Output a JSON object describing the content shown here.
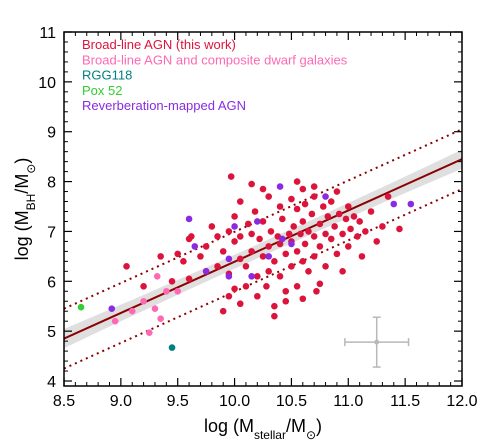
{
  "chart_data": {
    "type": "scatter",
    "xlabel": "log (M_stellar/M_⊙)",
    "ylabel": "log (M_BH/M_⊙)",
    "xlim": [
      8.5,
      12.0
    ],
    "ylim": [
      3.9,
      11.0
    ],
    "x_ticks": [
      "8.5",
      "9.0",
      "9.5",
      "10.0",
      "10.5",
      "11.0",
      "11.5",
      "12.0"
    ],
    "y_ticks": [
      "4",
      "5",
      "6",
      "7",
      "8",
      "9",
      "10",
      "11"
    ],
    "grid": false,
    "legend_position": "top-left",
    "fit": {
      "line": [
        [
          8.5,
          4.85
        ],
        [
          12.0,
          8.45
        ]
      ],
      "color": "#8b0000",
      "scatter_offset": 0.6,
      "band_halfwidth": 0.12
    },
    "error_bar_example": {
      "x": 11.25,
      "y": 4.78,
      "xerr": 0.28,
      "yerr": 0.5,
      "color": "#b8b8b8"
    },
    "series": [
      {
        "name": "Broad-line AGN (this work)",
        "color": "#dc143c",
        "points": [
          [
            9.05,
            6.3
          ],
          [
            9.2,
            5.9
          ],
          [
            9.35,
            6.5
          ],
          [
            9.45,
            6.0
          ],
          [
            9.5,
            6.55
          ],
          [
            9.55,
            6.4
          ],
          [
            9.6,
            6.05
          ],
          [
            9.62,
            6.9
          ],
          [
            9.7,
            6.5
          ],
          [
            9.75,
            6.7
          ],
          [
            9.75,
            6.2
          ],
          [
            9.8,
            7.1
          ],
          [
            9.85,
            6.9
          ],
          [
            9.85,
            6.3
          ],
          [
            9.9,
            6.6
          ],
          [
            9.95,
            7.0
          ],
          [
            9.95,
            6.15
          ],
          [
            9.95,
            5.7
          ],
          [
            9.97,
            8.1
          ],
          [
            10.0,
            7.3
          ],
          [
            10.0,
            6.8
          ],
          [
            10.0,
            5.85
          ],
          [
            10.05,
            6.45
          ],
          [
            10.05,
            7.6
          ],
          [
            10.05,
            5.55
          ],
          [
            10.1,
            6.3
          ],
          [
            10.1,
            5.9
          ],
          [
            10.12,
            7.15
          ],
          [
            10.15,
            6.95
          ],
          [
            10.15,
            6.6
          ],
          [
            10.18,
            7.4
          ],
          [
            10.2,
            6.1
          ],
          [
            10.2,
            5.7
          ],
          [
            10.22,
            6.85
          ],
          [
            10.25,
            7.2
          ],
          [
            10.25,
            6.5
          ],
          [
            10.28,
            5.9
          ],
          [
            10.3,
            7.7
          ],
          [
            10.3,
            6.7
          ],
          [
            10.3,
            6.2
          ],
          [
            10.32,
            7.0
          ],
          [
            10.35,
            6.4
          ],
          [
            10.35,
            5.5
          ],
          [
            10.38,
            6.9
          ],
          [
            10.4,
            7.5
          ],
          [
            10.4,
            6.75
          ],
          [
            10.4,
            6.1
          ],
          [
            10.42,
            7.25
          ],
          [
            10.45,
            6.55
          ],
          [
            10.45,
            5.8
          ],
          [
            10.48,
            6.95
          ],
          [
            10.5,
            7.65
          ],
          [
            10.5,
            6.8
          ],
          [
            10.5,
            6.3
          ],
          [
            10.52,
            7.1
          ],
          [
            10.55,
            6.6
          ],
          [
            10.55,
            7.45
          ],
          [
            10.55,
            5.9
          ],
          [
            10.58,
            6.95
          ],
          [
            10.6,
            7.2
          ],
          [
            10.6,
            6.4
          ],
          [
            10.62,
            7.55
          ],
          [
            10.62,
            6.75
          ],
          [
            10.65,
            7.0
          ],
          [
            10.65,
            6.2
          ],
          [
            10.68,
            7.35
          ],
          [
            10.7,
            6.9
          ],
          [
            10.7,
            7.7
          ],
          [
            10.7,
            6.5
          ],
          [
            10.72,
            5.8
          ],
          [
            10.75,
            7.15
          ],
          [
            10.75,
            6.7
          ],
          [
            10.78,
            7.5
          ],
          [
            10.8,
            6.95
          ],
          [
            10.8,
            6.3
          ],
          [
            10.82,
            7.3
          ],
          [
            10.85,
            7.6
          ],
          [
            10.85,
            6.85
          ],
          [
            10.88,
            7.1
          ],
          [
            10.9,
            6.55
          ],
          [
            10.9,
            7.8
          ],
          [
            10.92,
            7.35
          ],
          [
            10.95,
            6.95
          ],
          [
            10.95,
            6.2
          ],
          [
            10.98,
            7.25
          ],
          [
            11.0,
            7.5
          ],
          [
            11.0,
            6.7
          ],
          [
            11.02,
            7.05
          ],
          [
            11.05,
            7.3
          ],
          [
            11.08,
            6.9
          ],
          [
            11.1,
            7.2
          ],
          [
            11.12,
            6.5
          ],
          [
            11.15,
            7.0
          ],
          [
            11.2,
            7.4
          ],
          [
            11.25,
            6.8
          ],
          [
            11.3,
            7.1
          ],
          [
            11.35,
            7.7
          ],
          [
            11.45,
            7.05
          ],
          [
            10.6,
            7.85
          ],
          [
            10.55,
            8.0
          ],
          [
            10.25,
            7.85
          ],
          [
            10.15,
            7.95
          ],
          [
            10.35,
            5.3
          ],
          [
            10.45,
            5.6
          ],
          [
            10.6,
            5.65
          ],
          [
            9.9,
            5.4
          ],
          [
            10.7,
            7.9
          ],
          [
            10.75,
            5.95
          ],
          [
            9.6,
            6.85
          ],
          [
            10.05,
            6.9
          ]
        ]
      },
      {
        "name": "Broad-line AGN and composite dwarf galaxies",
        "color": "#ff69b4",
        "points": [
          [
            8.95,
            5.2
          ],
          [
            9.1,
            5.4
          ],
          [
            9.2,
            5.6
          ],
          [
            9.25,
            4.97
          ],
          [
            9.3,
            5.45
          ],
          [
            9.32,
            6.1
          ],
          [
            9.35,
            5.25
          ],
          [
            9.4,
            5.8
          ],
          [
            9.5,
            5.8
          ]
        ]
      },
      {
        "name": "RGG118",
        "color": "#008080",
        "points": [
          [
            9.45,
            4.67
          ]
        ]
      },
      {
        "name": "Pox 52",
        "color": "#32cd32",
        "points": [
          [
            8.65,
            5.48
          ]
        ]
      },
      {
        "name": "Reverberation-mapped AGN",
        "color": "#8a2be2",
        "points": [
          [
            8.92,
            5.45
          ],
          [
            9.6,
            7.25
          ],
          [
            9.75,
            6.2
          ],
          [
            9.95,
            6.45
          ],
          [
            9.95,
            6.1
          ],
          [
            10.0,
            7.1
          ],
          [
            10.15,
            6.1
          ],
          [
            10.2,
            7.2
          ],
          [
            10.4,
            7.9
          ],
          [
            10.5,
            6.75
          ],
          [
            10.8,
            7.7
          ],
          [
            10.3,
            6.5
          ],
          [
            11.4,
            7.55
          ],
          [
            11.55,
            7.55
          ],
          [
            10.42,
            6.85
          ],
          [
            9.65,
            6.7
          ]
        ]
      }
    ]
  }
}
